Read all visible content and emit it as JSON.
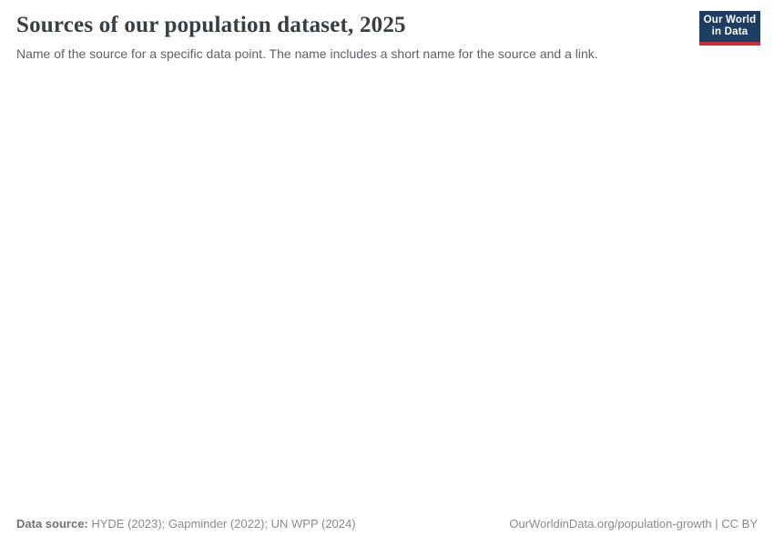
{
  "header": {
    "title": "Sources of our population dataset, 2025",
    "subtitle": "Name of the source for a specific data point. The name includes a short name for the source and a link."
  },
  "logo": {
    "line1": "Our World",
    "line2": "in Data",
    "bg_color": "#1d3d63",
    "stripe_color": "#d7282e"
  },
  "footer": {
    "source_label": "Data source:",
    "source_text": " HYDE (2023); Gapminder (2022); UN WPP (2024)",
    "attribution": "OurWorldinData.org/population-growth | CC BY"
  },
  "chart_data": {
    "type": "table",
    "title": "Sources of our population dataset, 2025",
    "subtitle": "Name of the source for a specific data point. The name includes a short name for the source and a link.",
    "categories": [],
    "values": [],
    "note": "Chart body area is rendered blank (no data points, axes, map, or legend visible in the screenshot)"
  },
  "colors": {
    "title": "#383e44",
    "subtitle": "#5f6367",
    "footer": "#8a8b8d",
    "background": "#ffffff"
  }
}
